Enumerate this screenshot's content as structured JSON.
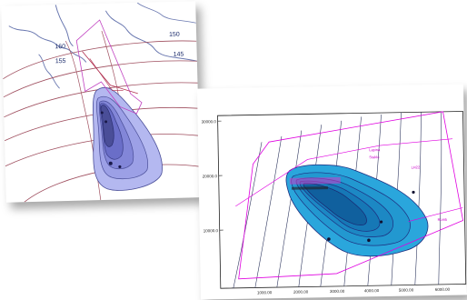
{
  "left_map": {
    "contour_labels": [
      "160",
      "150",
      "145",
      "155"
    ],
    "colors": {
      "river": "#6a78b0",
      "contour": "#a05060",
      "plume_fill": "#b4b8f0",
      "plume_core": "#4a4e98",
      "boundary": "#c040c0"
    }
  },
  "right_map": {
    "y_ticks": [
      "30000.0",
      "20000.0",
      "10000.0"
    ],
    "x_ticks": [
      "1000.00",
      "2000.00",
      "3000.00",
      "4000.00",
      "5000.00",
      "6000.00"
    ],
    "annotations": [
      "Lapina",
      "Staklo",
      "LH22",
      "Romb"
    ],
    "colors": {
      "plume_fill": "#2aa6dc",
      "contour": "#1e2e80",
      "boundary": "#e000e0",
      "grid_line": "#303860"
    }
  }
}
